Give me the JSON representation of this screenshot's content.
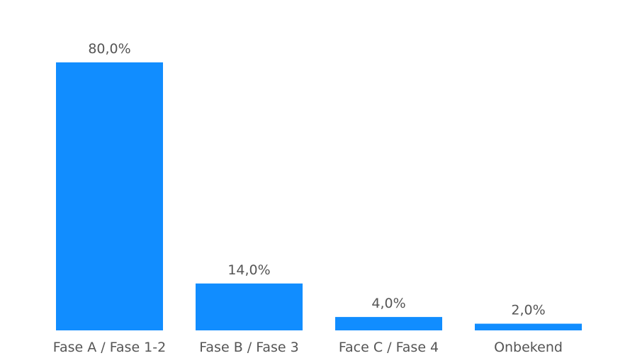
{
  "chart_data": {
    "type": "bar",
    "categories": [
      "Fase A / Fase 1-2",
      "Fase B / Fase 3",
      "Face C / Fase 4",
      "Onbekend"
    ],
    "values": [
      80.0,
      14.0,
      4.0,
      2.0
    ],
    "data_labels": [
      "80,0%",
      "14,0%",
      "4,0%",
      "2,0%"
    ],
    "ylim": [
      0,
      80
    ],
    "grid": false,
    "legend": "none",
    "bar_color": "#118DFF",
    "label_color": "#555555"
  }
}
